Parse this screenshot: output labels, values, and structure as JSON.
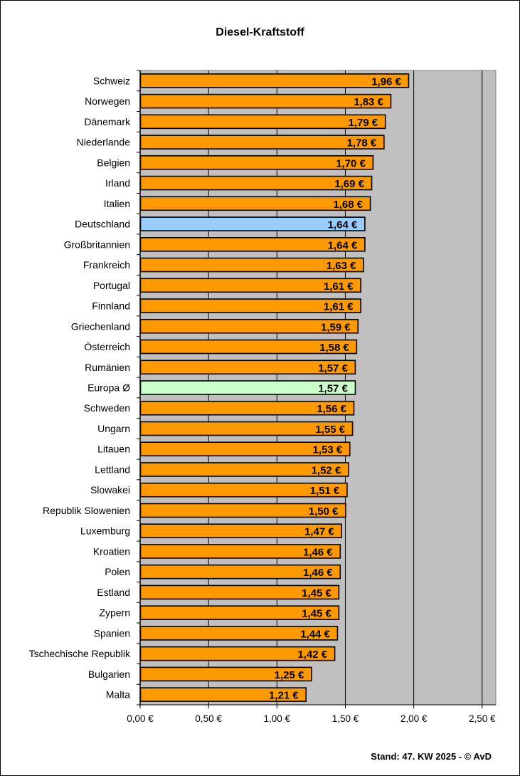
{
  "chart_data": {
    "type": "bar",
    "orientation": "horizontal",
    "title": "Diesel-Kraftstoff",
    "footer": "Stand: 47. KW 2025 - © AvD",
    "categories": [
      "Schweiz",
      "Norwegen",
      "Dänemark",
      "Niederlande",
      "Belgien",
      "Irland",
      "Italien",
      "Deutschland",
      "Großbritannien",
      "Frankreich",
      "Portugal",
      "Finnland",
      "Griechenland",
      "Österreich",
      "Rumänien",
      "Europa Ø",
      "Schweden",
      "Ungarn",
      "Litauen",
      "Lettland",
      "Slowakei",
      "Republik Slowenien",
      "Luxemburg",
      "Kroatien",
      "Polen",
      "Estland",
      "Zypern",
      "Spanien",
      "Tschechische Republik",
      "Bulgarien",
      "Malta"
    ],
    "values": [
      1.96,
      1.83,
      1.79,
      1.78,
      1.7,
      1.69,
      1.68,
      1.64,
      1.64,
      1.63,
      1.61,
      1.61,
      1.59,
      1.58,
      1.57,
      1.57,
      1.56,
      1.55,
      1.53,
      1.52,
      1.51,
      1.5,
      1.47,
      1.46,
      1.46,
      1.45,
      1.45,
      1.44,
      1.42,
      1.25,
      1.21
    ],
    "data_labels": [
      "1,96 €",
      "1,83 €",
      "1,79 €",
      "1,78 €",
      "1,70 €",
      "1,69 €",
      "1,68 €",
      "1,64 €",
      "1,64 €",
      "1,63 €",
      "1,61 €",
      "1,61 €",
      "1,59 €",
      "1,58 €",
      "1,57 €",
      "1,57 €",
      "1,56 €",
      "1,55 €",
      "1,53 €",
      "1,52 €",
      "1,51 €",
      "1,50 €",
      "1,47 €",
      "1,46 €",
      "1,46 €",
      "1,45 €",
      "1,45 €",
      "1,44 €",
      "1,42 €",
      "1,25 €",
      "1,21 €"
    ],
    "xlim": [
      0,
      2.6
    ],
    "xticks": [
      0,
      0.5,
      1.0,
      1.5,
      2.0,
      2.5
    ],
    "xtick_labels": [
      "0,00 €",
      "0,50 €",
      "1,00 €",
      "1,50 €",
      "2,00 €",
      "2,50 €"
    ],
    "grid": "vertical",
    "colors": {
      "default": "#FF9900",
      "Deutschland": "#99CCFF",
      "Europa Ø": "#CCFFCC",
      "plot_background": "#C0C0C0",
      "grid": "#000000"
    }
  }
}
